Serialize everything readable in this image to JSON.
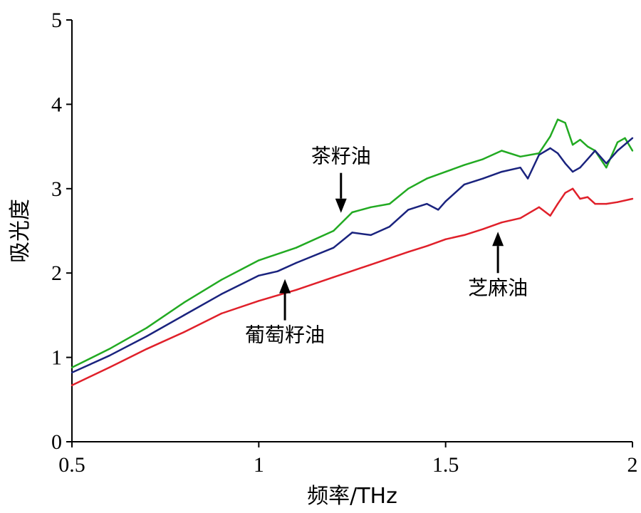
{
  "chart_data": {
    "type": "line",
    "title": "",
    "xlabel": "频率/THz",
    "ylabel": "吸光度",
    "xlim": [
      0.5,
      2.0
    ],
    "ylim": [
      0,
      5
    ],
    "x_ticks": [
      0.5,
      1.0,
      1.5,
      2.0
    ],
    "x_tick_labels": [
      "0.5",
      "1",
      "1.5",
      "2"
    ],
    "y_ticks": [
      0,
      1,
      2,
      3,
      4,
      5
    ],
    "y_tick_labels": [
      "0",
      "1",
      "2",
      "3",
      "4",
      "5"
    ],
    "grid": false,
    "series": [
      {
        "name": "茶籽油",
        "color": "#22aa22",
        "x": [
          0.5,
          0.6,
          0.7,
          0.8,
          0.9,
          1.0,
          1.1,
          1.2,
          1.25,
          1.3,
          1.35,
          1.4,
          1.45,
          1.5,
          1.55,
          1.6,
          1.65,
          1.7,
          1.75,
          1.78,
          1.8,
          1.82,
          1.84,
          1.86,
          1.88,
          1.9,
          1.93,
          1.96,
          1.98,
          2.0
        ],
        "y": [
          0.88,
          1.1,
          1.35,
          1.65,
          1.92,
          2.15,
          2.3,
          2.5,
          2.72,
          2.78,
          2.82,
          3.0,
          3.12,
          3.2,
          3.28,
          3.35,
          3.45,
          3.38,
          3.42,
          3.62,
          3.82,
          3.78,
          3.52,
          3.58,
          3.5,
          3.45,
          3.25,
          3.55,
          3.6,
          3.45
        ]
      },
      {
        "name": "葡萄籽油",
        "color": "#1a237e",
        "x": [
          0.5,
          0.6,
          0.7,
          0.8,
          0.9,
          1.0,
          1.05,
          1.1,
          1.2,
          1.25,
          1.3,
          1.35,
          1.4,
          1.45,
          1.48,
          1.5,
          1.55,
          1.6,
          1.65,
          1.7,
          1.72,
          1.75,
          1.78,
          1.8,
          1.82,
          1.84,
          1.86,
          1.88,
          1.9,
          1.93,
          1.96,
          2.0
        ],
        "y": [
          0.82,
          1.02,
          1.25,
          1.5,
          1.75,
          1.97,
          2.02,
          2.12,
          2.3,
          2.48,
          2.45,
          2.55,
          2.75,
          2.82,
          2.75,
          2.85,
          3.05,
          3.12,
          3.2,
          3.25,
          3.12,
          3.4,
          3.48,
          3.42,
          3.3,
          3.2,
          3.25,
          3.35,
          3.45,
          3.3,
          3.45,
          3.6
        ]
      },
      {
        "name": "芝麻油",
        "color": "#e0202a",
        "x": [
          0.5,
          0.6,
          0.7,
          0.8,
          0.9,
          1.0,
          1.1,
          1.2,
          1.3,
          1.4,
          1.45,
          1.5,
          1.55,
          1.6,
          1.65,
          1.7,
          1.75,
          1.78,
          1.8,
          1.82,
          1.84,
          1.86,
          1.88,
          1.9,
          1.93,
          1.96,
          2.0
        ],
        "y": [
          0.67,
          0.88,
          1.1,
          1.3,
          1.52,
          1.67,
          1.8,
          1.95,
          2.1,
          2.25,
          2.32,
          2.4,
          2.45,
          2.52,
          2.6,
          2.65,
          2.78,
          2.68,
          2.82,
          2.95,
          3.0,
          2.88,
          2.9,
          2.82,
          2.82,
          2.84,
          2.88
        ]
      }
    ],
    "annotations": [
      {
        "text": "茶籽油",
        "series": "茶籽油",
        "x": 1.22,
        "y": 2.68,
        "text_pos": "above"
      },
      {
        "text": "葡萄籽油",
        "series": "葡萄籽油",
        "x": 1.07,
        "y": 1.98,
        "text_pos": "below"
      },
      {
        "text": "芝麻油",
        "series": "芝麻油",
        "x": 1.64,
        "y": 2.54,
        "text_pos": "below"
      }
    ]
  }
}
